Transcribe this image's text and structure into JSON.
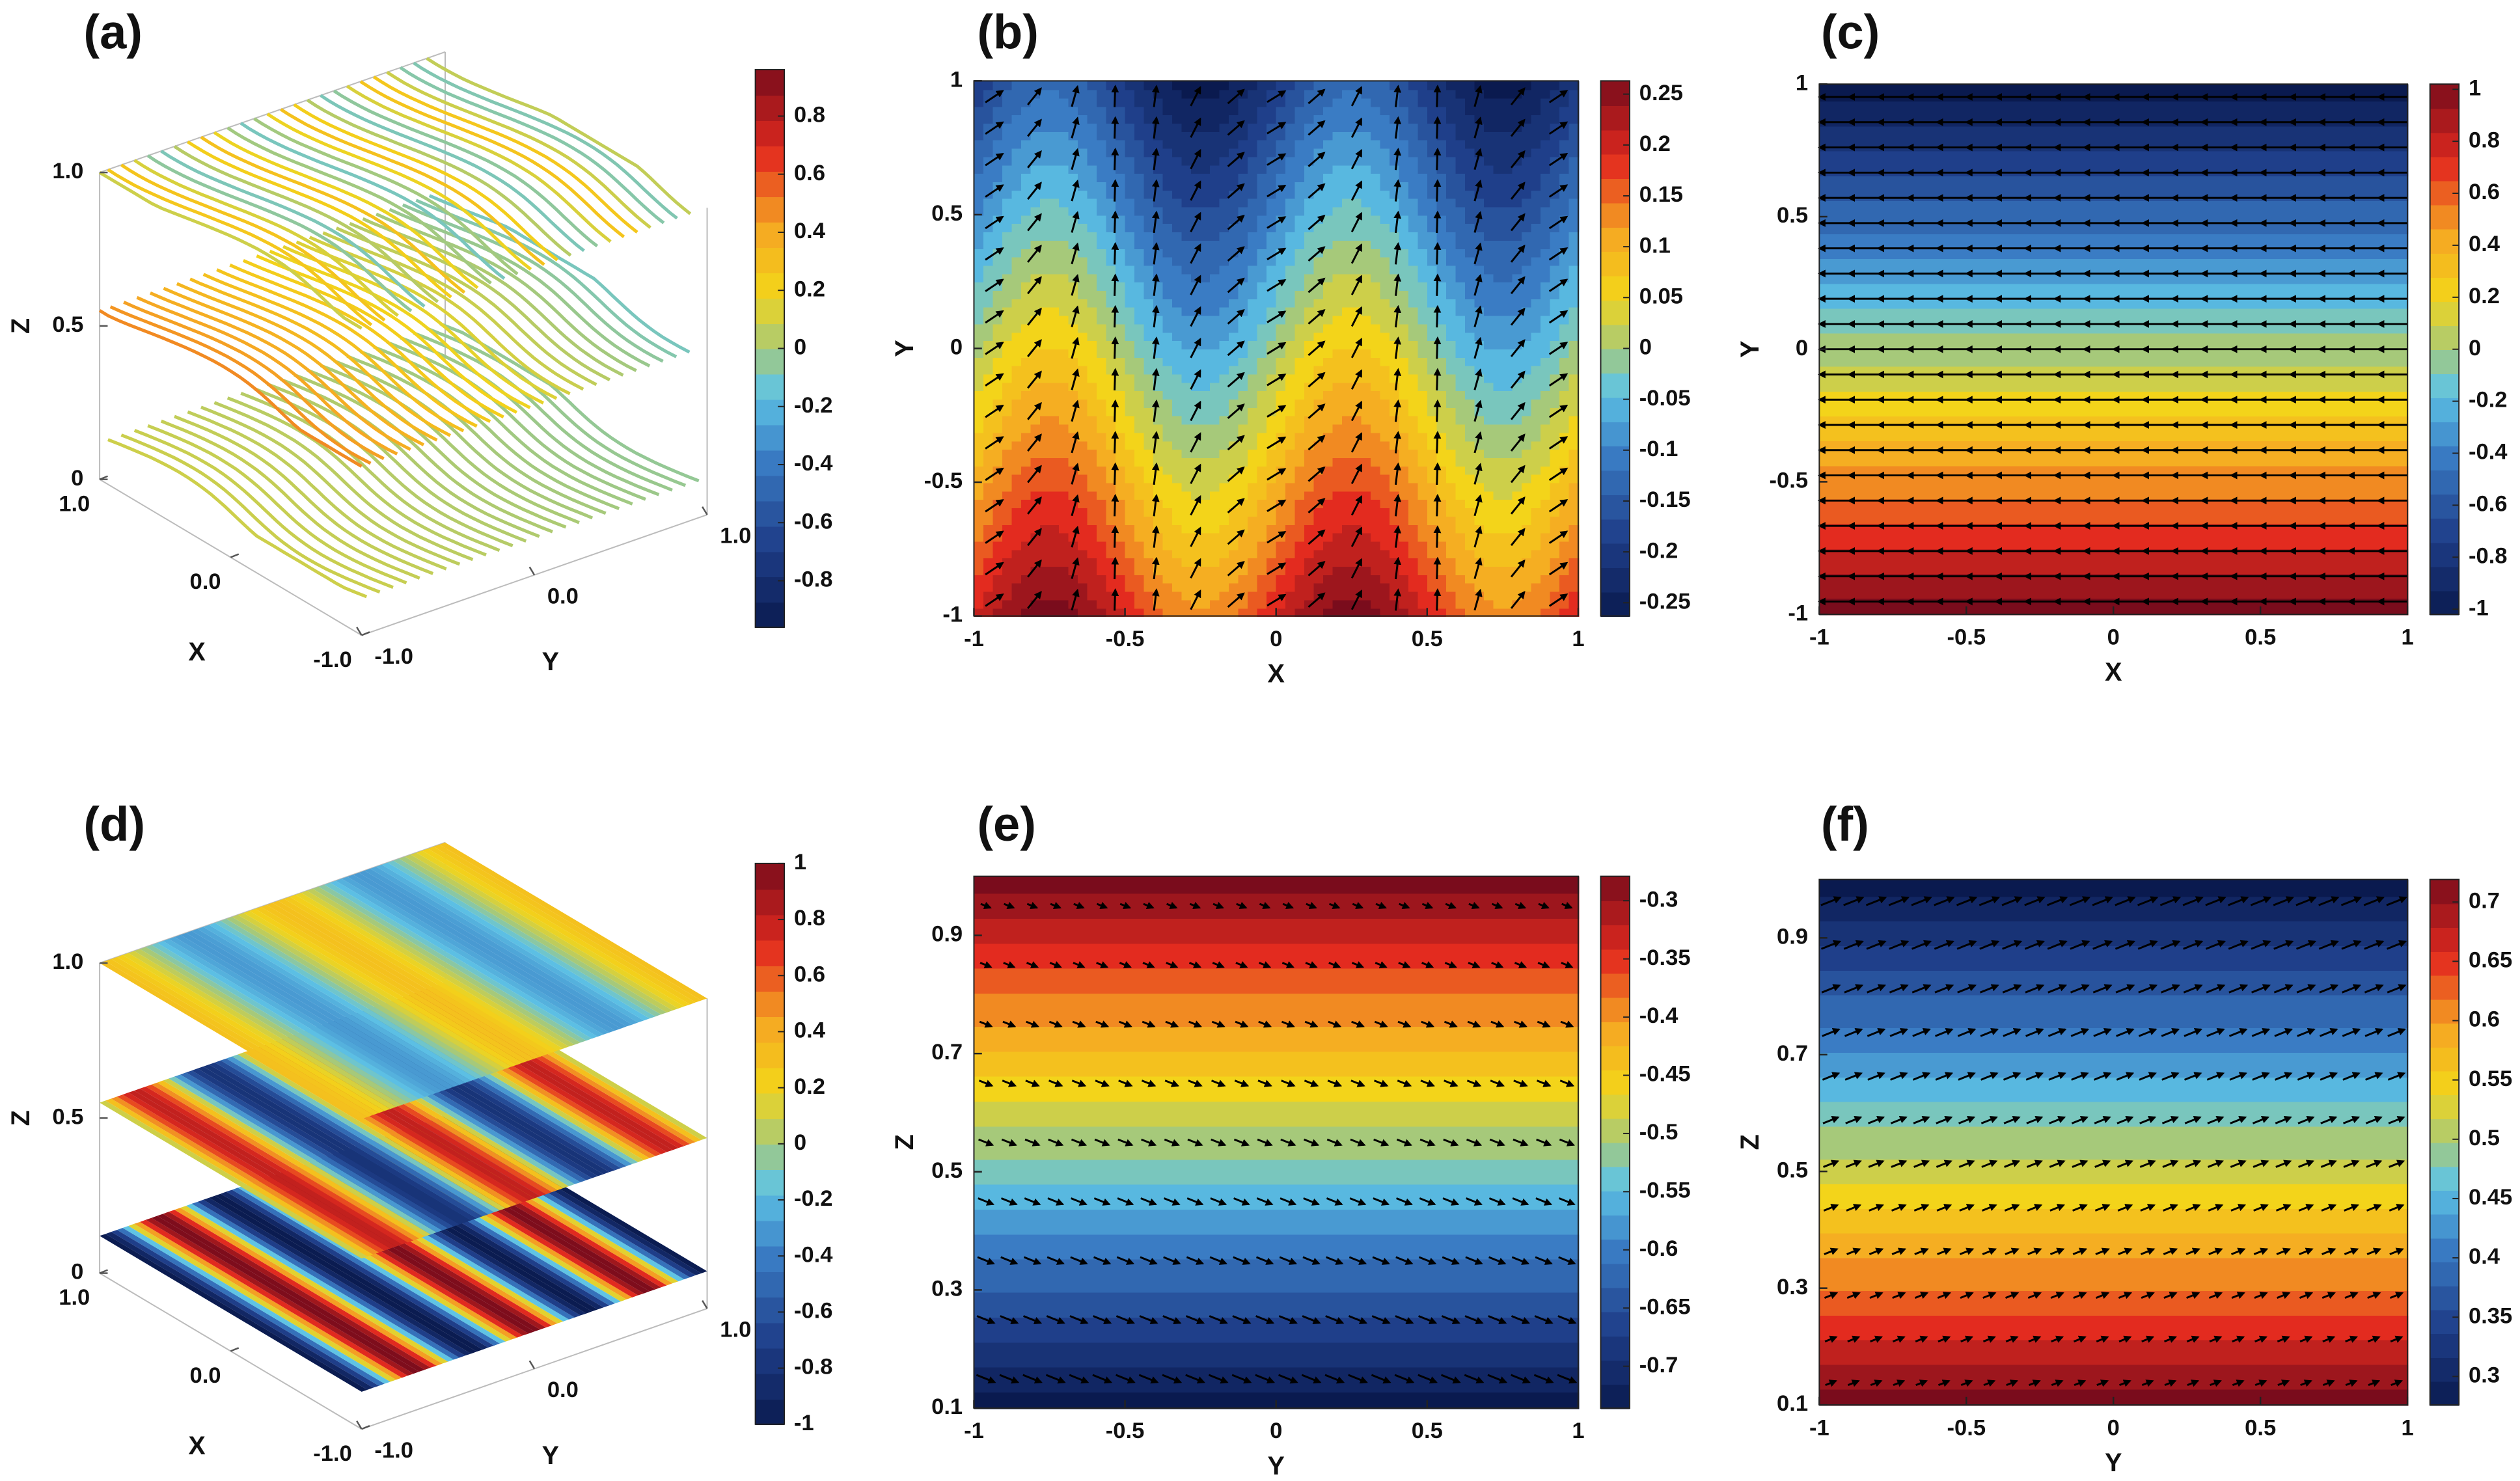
{
  "chart_data": [
    {
      "type": "slices3d",
      "label": "(a)",
      "xlabel": "X",
      "ylabel": "Y",
      "zlabel": "Z",
      "xlim": [
        -1,
        1
      ],
      "ylim": [
        -1,
        1
      ],
      "zlim": [
        0,
        1
      ],
      "xticks": [
        {
          "value": -1,
          "label": "-1.0"
        },
        {
          "value": 0,
          "label": "0.0"
        },
        {
          "value": 1,
          "label": "1.0"
        }
      ],
      "yticks": [
        {
          "value": -1,
          "label": "-1.0"
        },
        {
          "value": 0,
          "label": "0.0"
        },
        {
          "value": 1,
          "label": "1.0"
        }
      ],
      "zticks": [
        0,
        0.5,
        {
          "value": 1,
          "label": "1.0"
        }
      ],
      "colorbar": {
        "lim": [
          -0.96,
          0.96
        ],
        "ticks": [
          -0.8,
          -0.6,
          -0.4,
          -0.2,
          0,
          0.2,
          0.4,
          0.6,
          0.8
        ]
      }
    },
    {
      "type": "contour",
      "label": "(b)",
      "xlabel": "X",
      "ylabel": "Y",
      "xlim": [
        -1,
        1
      ],
      "ylim": [
        -1,
        1
      ],
      "xticks": [
        -1,
        -0.5,
        0,
        0.5,
        1
      ],
      "yticks": [
        -1,
        -0.5,
        0,
        0.5,
        1
      ],
      "colorbar": {
        "lim": [
          -0.263,
          0.263
        ],
        "ticks": [
          -0.25,
          -0.2,
          -0.15,
          -0.1,
          -0.05,
          0,
          0.05,
          0.1,
          0.15,
          0.2,
          0.25
        ]
      }
    },
    {
      "type": "contour",
      "label": "(c)",
      "xlabel": "X",
      "ylabel": "Y",
      "xlim": [
        -1,
        1
      ],
      "ylim": [
        -1,
        1
      ],
      "xticks": [
        -1,
        -0.5,
        0,
        0.5,
        1
      ],
      "yticks": [
        -1,
        -0.5,
        0,
        0.5,
        1
      ],
      "colorbar": {
        "lim": [
          -1.02,
          1.02
        ],
        "ticks": [
          -1,
          -0.8,
          -0.6,
          -0.4,
          -0.2,
          0,
          0.2,
          0.4,
          0.6,
          0.8,
          1
        ]
      }
    },
    {
      "type": "slices3d",
      "label": "(d)",
      "xlabel": "X",
      "ylabel": "Y",
      "zlabel": "Z",
      "xlim": [
        -1,
        1
      ],
      "ylim": [
        -1,
        1
      ],
      "zlim": [
        0,
        1
      ],
      "xticks": [
        {
          "value": -1,
          "label": "-1.0"
        },
        {
          "value": 0,
          "label": "0.0"
        },
        {
          "value": 1,
          "label": "1.0"
        }
      ],
      "yticks": [
        {
          "value": -1,
          "label": "-1.0"
        },
        {
          "value": 0,
          "label": "0.0"
        },
        {
          "value": 1,
          "label": "1.0"
        }
      ],
      "zticks": [
        0,
        0.5,
        {
          "value": 1,
          "label": "1.0"
        }
      ],
      "colorbar": {
        "lim": [
          -1,
          1
        ],
        "ticks": [
          -1,
          -0.8,
          -0.6,
          -0.4,
          -0.2,
          0,
          0.2,
          0.4,
          0.6,
          0.8,
          1
        ]
      }
    },
    {
      "type": "contour",
      "label": "(e)",
      "xlabel": "Y",
      "ylabel": "Z",
      "xlim": [
        -1,
        1
      ],
      "ylim": [
        0.1,
        1
      ],
      "xticks": [
        -1,
        -0.5,
        0,
        0.5,
        1
      ],
      "yticks": [
        0.1,
        0.3,
        0.5,
        0.7,
        0.9
      ],
      "colorbar": {
        "lim": [
          -0.736,
          -0.279
        ],
        "ticks": [
          -0.7,
          -0.65,
          -0.6,
          -0.55,
          -0.5,
          -0.45,
          -0.4,
          -0.35,
          -0.3
        ]
      }
    },
    {
      "type": "contour",
      "label": "(f)",
      "xlabel": "Y",
      "ylabel": "Z",
      "xlim": [
        -1,
        1
      ],
      "ylim": [
        0.1,
        1
      ],
      "xticks": [
        -1,
        -0.5,
        0,
        0.5,
        1
      ],
      "yticks": [
        0.1,
        0.3,
        0.5,
        0.7,
        0.9
      ],
      "colorbar": {
        "lim": [
          0.276,
          0.719
        ],
        "ticks": [
          0.3,
          0.35,
          0.4,
          0.45,
          0.5,
          0.55,
          0.6,
          0.65,
          0.7
        ]
      }
    }
  ]
}
